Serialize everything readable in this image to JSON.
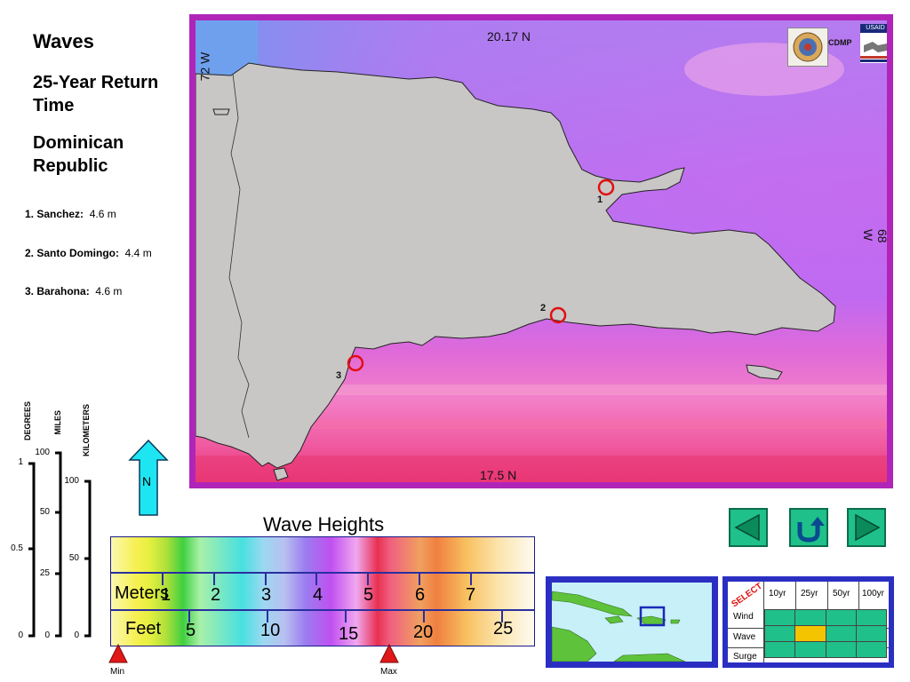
{
  "panel": {
    "title": "Waves",
    "subtitle": "25-Year Return Time",
    "region": "Dominican Republic",
    "sites": [
      {
        "label": "1. Sanchez:",
        "value": "4.6 m"
      },
      {
        "label": "2. Santo Domingo:",
        "value": "4.4 m"
      },
      {
        "label": "3. Barahona:",
        "value": "4.6 m"
      }
    ]
  },
  "map": {
    "top_lat": "20.17 N",
    "bottom_lat": "17.5 N",
    "left_lon": "72 W",
    "right_lon": "68 W",
    "logo_text": "CDMP",
    "usaid_text": "USAID",
    "markers": [
      "1",
      "2",
      "3"
    ],
    "land_color": "#c9c6c6",
    "sea_color_light": "#a77ff5",
    "sea_color_pink": "#f05da0"
  },
  "scales": {
    "degrees_label": "DEGREES",
    "miles_label": "MILES",
    "km_label": "KILOMETERS",
    "degrees_ticks": [
      "1",
      "0.5",
      "0"
    ],
    "miles_ticks": [
      "100",
      "50",
      "25",
      "0"
    ],
    "km_ticks": [
      "100",
      "50",
      "0"
    ]
  },
  "north": {
    "label": "N"
  },
  "legend": {
    "title": "Wave Heights",
    "meters_label": "Meters",
    "feet_label": "Feet",
    "meters_ticks": [
      "1",
      "2",
      "3",
      "4",
      "5",
      "6",
      "7"
    ],
    "feet_ticks": [
      "5",
      "10",
      "15",
      "20",
      "25"
    ],
    "min_label": "Min",
    "max_label": "Max"
  },
  "nav": {
    "back": "back-arrow-icon",
    "reset": "u-turn-icon",
    "forward": "forward-arrow-icon"
  },
  "select": {
    "label": "SELECT",
    "columns": [
      "10yr",
      "25yr",
      "50yr",
      "100yr"
    ],
    "rows": [
      "Wind",
      "Wave",
      "Surge"
    ],
    "selected_row": "Wave",
    "selected_col": "25yr",
    "cell_color": "#1fc08a",
    "selected_color": "#f5c400"
  }
}
